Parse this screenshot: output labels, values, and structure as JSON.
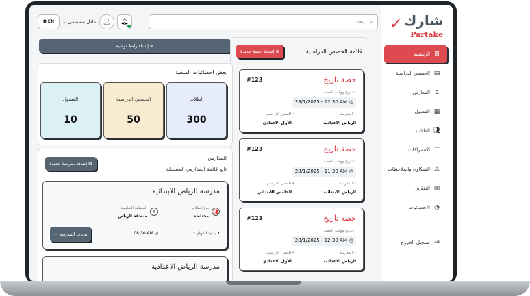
{
  "brand": {
    "logo_ar": "شارك",
    "logo_en": "Partake",
    "accent": "#dd4a4f",
    "dark": "#566573"
  },
  "sidebar": {
    "items": [
      {
        "label": "الرئيسية",
        "icon": "grid-icon",
        "active": true
      },
      {
        "label": "الحصص الدراسية",
        "icon": "document-icon"
      },
      {
        "label": "المدارس",
        "icon": "school-icon"
      },
      {
        "label": "الفصول",
        "icon": "classroom-icon"
      },
      {
        "label": "الطلاب",
        "icon": "users-icon"
      },
      {
        "label": "الاشتراكات",
        "icon": "subscription-icon"
      },
      {
        "label": "الشكاوى والملاحظات",
        "icon": "warning-icon"
      },
      {
        "label": "التقارير",
        "icon": "chart-icon"
      },
      {
        "label": "الاحصائيات",
        "icon": "pie-chart-icon"
      }
    ],
    "logout": "تسجيل الخروج"
  },
  "header": {
    "search_placeholder": "بحث",
    "user_name": "عادل مصطفى",
    "lang": "EN"
  },
  "referral_button": "إنشاء رابط توصية",
  "stats": {
    "title": "بعض احصائيات المنصة",
    "items": [
      {
        "label": "الطلاب",
        "value": "300",
        "color": "#e6ecfb"
      },
      {
        "label": "الحصص الدراسية",
        "value": "50",
        "color": "#f8ebcf"
      },
      {
        "label": "الفصول",
        "value": "10",
        "color": "#dcf1f5"
      }
    ]
  },
  "lessons": {
    "title": "قائمة الحصص الدراسية",
    "add_button": "إضافة حصة جديدة",
    "datetime_label": "تاريخ ووقت الحصة",
    "school_label": "المدرسة",
    "class_label": "الفصل الدراسي",
    "items": [
      {
        "name": "حصة تاريخ",
        "id": "#123",
        "datetime": "28/1/2025 - 12:30 AM",
        "school": "الرياض الاعدادية",
        "class": "الأول الاعدادي"
      },
      {
        "name": "حصة تاريخ",
        "id": "#123",
        "datetime": "28/1/2025 - 11:30 AM",
        "school": "الرياض الابتدائية",
        "class": "الخامس الابتدائي"
      },
      {
        "name": "حصة تاريخ",
        "id": "#123",
        "datetime": "28/1/2025 - 12:30 AM",
        "school": "الرياض الاعدادية",
        "class": "الأول الاعدادي"
      }
    ]
  },
  "schools": {
    "title": "المدارس",
    "subtitle": "تابع قائمة المدارس المسجلة",
    "add_button": "إضافة مدرسة جديدة",
    "items": [
      {
        "name": "مدرسة الرياض الابتدائية",
        "type_label": "نوع الطلاب",
        "type": "مختلطة",
        "region_label": "المنطقة التعليمية",
        "region": "منطقة الرياض",
        "start_label": "بداية الدوام :",
        "start": "08:30 AM",
        "details_button": "بيانات المدرسة"
      },
      {
        "name": "مدرسة الرياض الاعدادية"
      }
    ]
  }
}
